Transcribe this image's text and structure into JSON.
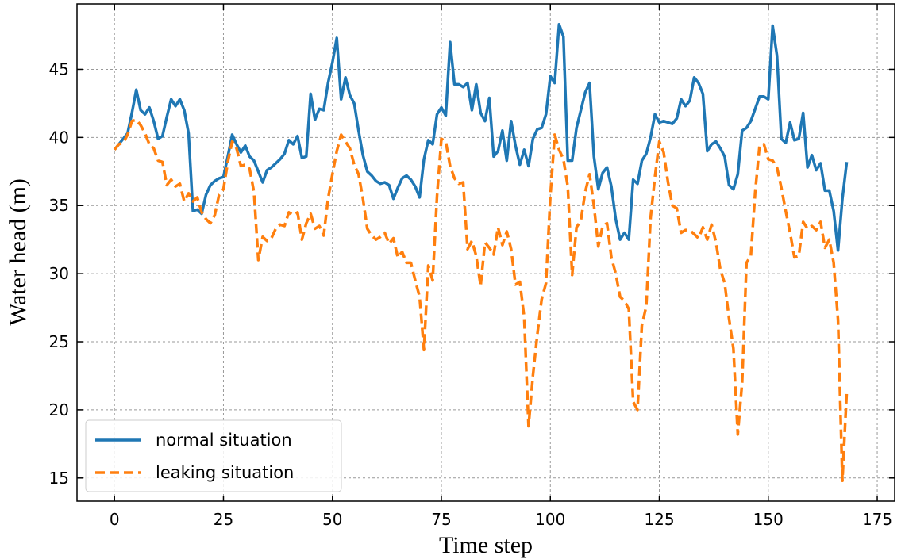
{
  "chart_data": {
    "type": "line",
    "xlabel": "Time step",
    "ylabel": "Water head (m)",
    "xlim": [
      -8.6,
      179
    ],
    "ylim": [
      13.3,
      49.8
    ],
    "xticks": [
      0,
      25,
      50,
      75,
      100,
      125,
      150,
      175
    ],
    "yticks": [
      15,
      20,
      25,
      30,
      35,
      40,
      45
    ],
    "grid": true,
    "legend": "lower left",
    "x": [
      0,
      1,
      2,
      3,
      4,
      5,
      6,
      7,
      8,
      9,
      10,
      11,
      12,
      13,
      14,
      15,
      16,
      17,
      18,
      19,
      20,
      21,
      22,
      23,
      24,
      25,
      26,
      27,
      28,
      29,
      30,
      31,
      32,
      33,
      34,
      35,
      36,
      37,
      38,
      39,
      40,
      41,
      42,
      43,
      44,
      45,
      46,
      47,
      48,
      49,
      50,
      51,
      52,
      53,
      54,
      55,
      56,
      57,
      58,
      59,
      60,
      61,
      62,
      63,
      64,
      65,
      66,
      67,
      68,
      69,
      70,
      71,
      72,
      73,
      74,
      75,
      76,
      77,
      78,
      79,
      80,
      81,
      82,
      83,
      84,
      85,
      86,
      87,
      88,
      89,
      90,
      91,
      92,
      93,
      94,
      95,
      96,
      97,
      98,
      99,
      100,
      101,
      102,
      103,
      104,
      105,
      106,
      107,
      108,
      109,
      110,
      111,
      112,
      113,
      114,
      115,
      116,
      117,
      118,
      119,
      120,
      121,
      122,
      123,
      124,
      125,
      126,
      127,
      128,
      129,
      130,
      131,
      132,
      133,
      134,
      135,
      136,
      137,
      138,
      139,
      140,
      141,
      142,
      143,
      144,
      145,
      146,
      147,
      148,
      149,
      150,
      151,
      152,
      153,
      154,
      155,
      156,
      157,
      158,
      159,
      160,
      161,
      162,
      163,
      164,
      165,
      166,
      167,
      168
    ],
    "series": [
      {
        "name": "normal situation",
        "color": "#1f77b4",
        "dash": false,
        "values": [
          39.1,
          39.5,
          39.9,
          40.3,
          41.8,
          43.5,
          42,
          41.7,
          42.2,
          41.2,
          39.9,
          40.1,
          41.5,
          42.8,
          42.3,
          42.8,
          42,
          40.3,
          34.6,
          34.7,
          34.4,
          35.8,
          36.5,
          36.8,
          37,
          37.1,
          38.6,
          40.2,
          39.5,
          38.9,
          39.4,
          38.6,
          38.3,
          37.5,
          36.7,
          37.6,
          37.8,
          38.1,
          38.4,
          38.8,
          39.8,
          39.5,
          40.1,
          38.5,
          38.6,
          43.2,
          41.3,
          42.1,
          42,
          44,
          45.5,
          47.3,
          42.8,
          44.4,
          43.1,
          42.5,
          40.5,
          38.7,
          37.5,
          37.2,
          36.8,
          36.6,
          36.7,
          36.5,
          35.5,
          36.3,
          37,
          37.2,
          36.9,
          36.4,
          35.6,
          38.4,
          39.8,
          39.5,
          41.7,
          42.2,
          41.6,
          47,
          43.9,
          43.9,
          43.7,
          44,
          42,
          43.9,
          41.8,
          41.2,
          42.9,
          38.6,
          39,
          40.5,
          38.3,
          41.2,
          39.4,
          38,
          39.1,
          37.9,
          39.9,
          40.6,
          40.7,
          41.7,
          44.5,
          44,
          48.3,
          47.4,
          38.3,
          38.3,
          40.7,
          42,
          43.3,
          44,
          38.6,
          36.2,
          37.4,
          37.8,
          36.4,
          34,
          32.5,
          33,
          32.5,
          36.9,
          36.6,
          38.3,
          38.8,
          40,
          41.7,
          41.1,
          41.2,
          41.1,
          41,
          41.4,
          42.8,
          42.3,
          42.7,
          44.4,
          44,
          43.2,
          39,
          39.5,
          39.7,
          39.2,
          38.6,
          36.5,
          36.2,
          37.3,
          40.5,
          40.7,
          41.2,
          42.1,
          43,
          43,
          42.8,
          48.2,
          46,
          39.9,
          39.6,
          41.1,
          39.8,
          39.9,
          41.8,
          37.8,
          38.7,
          37.6,
          38.1,
          36.1,
          36.1,
          34.6,
          31.7,
          35.5,
          38.2
        ]
      },
      {
        "name": "leaking situation",
        "color": "#ff7f0e",
        "dash": true,
        "values": [
          39.1,
          39.5,
          39.6,
          40.2,
          41.2,
          41.3,
          40.9,
          40.3,
          39.5,
          39.2,
          38.3,
          38.2,
          36.5,
          36.9,
          36.4,
          36.6,
          35.3,
          35.9,
          35.3,
          35.6,
          34.5,
          34,
          33.7,
          34.3,
          35.8,
          36.2,
          38.2,
          39.7,
          39.2,
          37.9,
          38,
          37.7,
          36,
          31,
          32.7,
          32.4,
          32.6,
          33.3,
          33.6,
          33.5,
          34.5,
          34.3,
          34.5,
          32.5,
          33.7,
          34.4,
          33.3,
          33.5,
          32.8,
          35.5,
          37.3,
          39,
          40.2,
          39.7,
          39.2,
          38,
          37.3,
          35.5,
          33.3,
          32.8,
          32.5,
          32.7,
          33,
          32.2,
          32.6,
          31.2,
          31.6,
          30.8,
          30.8,
          29.5,
          28.3,
          24.4,
          30.6,
          29.5,
          35.7,
          39.9,
          39.7,
          37.9,
          37,
          36.6,
          36.7,
          31.8,
          32.4,
          31.3,
          29.1,
          32.3,
          31.9,
          31.4,
          33.4,
          32.1,
          33.1,
          31.8,
          29.2,
          29.4,
          26.8,
          18.8,
          22.5,
          25.5,
          28.1,
          29.3,
          35.7,
          40.2,
          39.1,
          38.4,
          36.4,
          29.9,
          33.4,
          33.9,
          36,
          37.3,
          35,
          32,
          33.5,
          33.7,
          31.2,
          30,
          28.3,
          28,
          27.4,
          20.6,
          20,
          26.2,
          27.6,
          34.1,
          37.1,
          39.7,
          38.9,
          36.7,
          35,
          34.8,
          33,
          33.2,
          33.2,
          32.9,
          32.6,
          33.4,
          32.5,
          33.6,
          32.3,
          30.3,
          29.3,
          26.7,
          24.5,
          18.2,
          22,
          30.8,
          31.3,
          36,
          39.4,
          39.5,
          38.4,
          38.3,
          37.8,
          36.3,
          34.6,
          33,
          31.2,
          31.3,
          33.8,
          33.3,
          33.5,
          33.2,
          33.8,
          31.9,
          32.5,
          30.8,
          26.6,
          14.8,
          21.3
        ]
      }
    ]
  }
}
